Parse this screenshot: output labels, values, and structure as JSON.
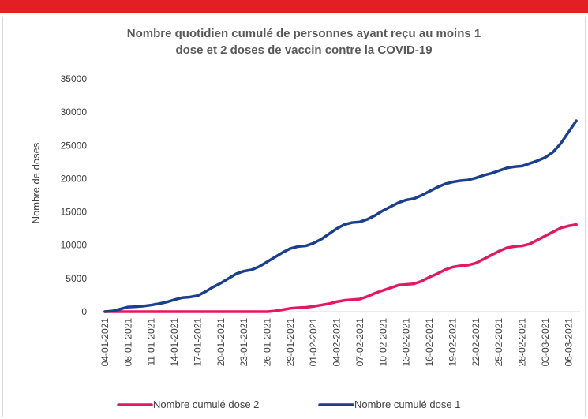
{
  "chart_data": {
    "type": "line",
    "title": [
      "Nombre quotidien cumulé de personnes ayant reçu au moins 1",
      "dose et 2 doses de vaccin contre la COVID-19"
    ],
    "ylabel": "Nombre de doses",
    "ylim": [
      0,
      35000
    ],
    "yticks": [
      0,
      5000,
      10000,
      15000,
      20000,
      25000,
      30000,
      35000
    ],
    "grid": false,
    "legend": "bottom",
    "categories": [
      "04-01-2021",
      null,
      null,
      "08-01-2021",
      null,
      null,
      "11-01-2021",
      null,
      null,
      "14-01-2021",
      null,
      null,
      "17-01-2021",
      null,
      null,
      "20-01-2021",
      null,
      null,
      "23-01-2021",
      null,
      null,
      "26-01-2021",
      null,
      null,
      "29-01-2021",
      null,
      null,
      "01-02-2021",
      null,
      null,
      "04-02-2021",
      null,
      null,
      "07-02-2021",
      null,
      null,
      "10-02-2021",
      null,
      null,
      "13-02-2021",
      null,
      null,
      "16-02-2021",
      null,
      null,
      "19-02-2021",
      null,
      null,
      "22-02-2021",
      null,
      null,
      "25-02-2021",
      null,
      null,
      "28-02-2021",
      null,
      null,
      "03-03-2021",
      null,
      null,
      "06-03-2021",
      null
    ],
    "series": [
      {
        "name": "Nombre cumulé dose 2",
        "color": "#e5175f",
        "values": [
          0,
          0,
          0,
          0,
          0,
          0,
          0,
          0,
          0,
          0,
          0,
          0,
          0,
          0,
          0,
          0,
          0,
          0,
          0,
          0,
          0,
          0,
          100,
          300,
          500,
          600,
          650,
          800,
          1000,
          1200,
          1500,
          1700,
          1800,
          1900,
          2300,
          2800,
          3200,
          3600,
          4000,
          4100,
          4200,
          4600,
          5200,
          5700,
          6300,
          6700,
          6900,
          7000,
          7300,
          7900,
          8500,
          9100,
          9600,
          9800,
          9900,
          10200,
          10800,
          11400,
          12000,
          12600,
          12900,
          13100
        ]
      },
      {
        "name": "Nombre cumulé dose 1",
        "color": "#1a3f8f",
        "values": [
          0,
          100,
          400,
          700,
          750,
          850,
          1000,
          1200,
          1450,
          1800,
          2100,
          2200,
          2400,
          3000,
          3700,
          4300,
          5000,
          5700,
          6100,
          6300,
          6800,
          7500,
          8200,
          8900,
          9500,
          9800,
          9900,
          10300,
          10900,
          11700,
          12500,
          13100,
          13400,
          13500,
          13900,
          14500,
          15200,
          15800,
          16400,
          16800,
          17000,
          17500,
          18100,
          18700,
          19200,
          19500,
          19700,
          19800,
          20100,
          20500,
          20800,
          21200,
          21600,
          21800,
          21900,
          22300,
          22700,
          23200,
          24000,
          25300,
          27000,
          28700
        ]
      }
    ]
  }
}
